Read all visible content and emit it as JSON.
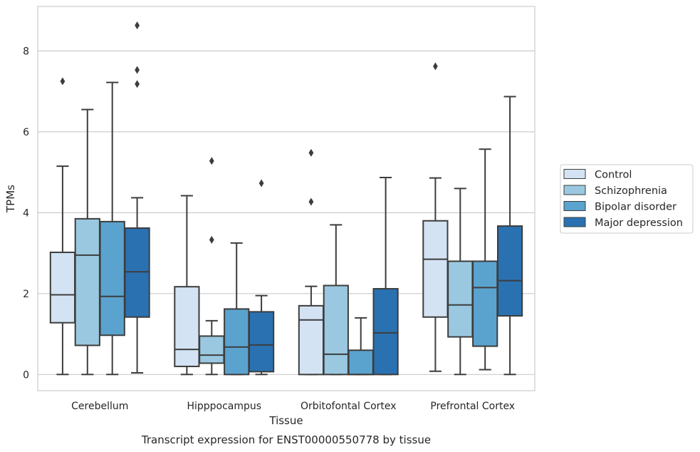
{
  "chart_data": {
    "type": "box",
    "title": "",
    "caption": "Transcript expression for ENST00000550778 by tissue",
    "xlabel": "Tissue",
    "ylabel": "TPMs",
    "ylim": [
      -0.4,
      9.1
    ],
    "yticks": [
      0,
      2,
      4,
      6,
      8
    ],
    "grid": "horizontal",
    "legend_position": "right",
    "categories": [
      "Cerebellum",
      "Hipppocampus",
      "Orbitofontal Cortex",
      "Prefrontal Cortex"
    ],
    "series": [
      {
        "name": "Control",
        "color": "#d3e3f3",
        "boxes": [
          {
            "whislo": 0.0,
            "q1": 1.28,
            "med": 1.97,
            "q3": 3.02,
            "whishi": 5.15,
            "fliers": [
              7.25
            ]
          },
          {
            "whislo": 0.0,
            "q1": 0.2,
            "med": 0.62,
            "q3": 2.17,
            "whishi": 4.42,
            "fliers": []
          },
          {
            "whislo": 0.0,
            "q1": 0.0,
            "med": 1.35,
            "q3": 1.7,
            "whishi": 2.18,
            "fliers": [
              5.48,
              4.27
            ]
          },
          {
            "whislo": 0.08,
            "q1": 1.42,
            "med": 2.85,
            "q3": 3.8,
            "whishi": 4.86,
            "fliers": [
              7.62
            ]
          }
        ]
      },
      {
        "name": "Schizophrenia",
        "color": "#9ac8e0",
        "boxes": [
          {
            "whislo": 0.0,
            "q1": 0.72,
            "med": 2.95,
            "q3": 3.85,
            "whishi": 6.55,
            "fliers": []
          },
          {
            "whislo": 0.0,
            "q1": 0.28,
            "med": 0.48,
            "q3": 0.95,
            "whishi": 1.33,
            "fliers": [
              5.28,
              3.33
            ]
          },
          {
            "whislo": 0.0,
            "q1": 0.0,
            "med": 0.5,
            "q3": 2.2,
            "whishi": 3.7,
            "fliers": []
          },
          {
            "whislo": 0.0,
            "q1": 0.93,
            "med": 1.72,
            "q3": 2.8,
            "whishi": 4.6,
            "fliers": []
          }
        ]
      },
      {
        "name": "Bipolar disorder",
        "color": "#5ba3cf",
        "boxes": [
          {
            "whislo": 0.0,
            "q1": 0.97,
            "med": 1.93,
            "q3": 3.78,
            "whishi": 7.22,
            "fliers": []
          },
          {
            "whislo": 0.0,
            "q1": 0.0,
            "med": 0.68,
            "q3": 1.62,
            "whishi": 3.25,
            "fliers": []
          },
          {
            "whislo": 0.0,
            "q1": 0.0,
            "med": 0.0,
            "q3": 0.6,
            "whishi": 1.4,
            "fliers": []
          },
          {
            "whislo": 0.12,
            "q1": 0.7,
            "med": 2.15,
            "q3": 2.8,
            "whishi": 5.57,
            "fliers": []
          }
        ]
      },
      {
        "name": "Major depression",
        "color": "#2a71b2",
        "boxes": [
          {
            "whislo": 0.04,
            "q1": 1.42,
            "med": 2.54,
            "q3": 3.62,
            "whishi": 4.37,
            "fliers": [
              8.63,
              7.53,
              7.18
            ]
          },
          {
            "whislo": 0.0,
            "q1": 0.07,
            "med": 0.73,
            "q3": 1.55,
            "whishi": 1.95,
            "fliers": [
              4.73
            ]
          },
          {
            "whislo": 0.0,
            "q1": 0.0,
            "med": 1.03,
            "q3": 2.12,
            "whishi": 4.87,
            "fliers": []
          },
          {
            "whislo": 0.0,
            "q1": 1.45,
            "med": 2.32,
            "q3": 3.67,
            "whishi": 6.87,
            "fliers": []
          }
        ]
      }
    ]
  }
}
